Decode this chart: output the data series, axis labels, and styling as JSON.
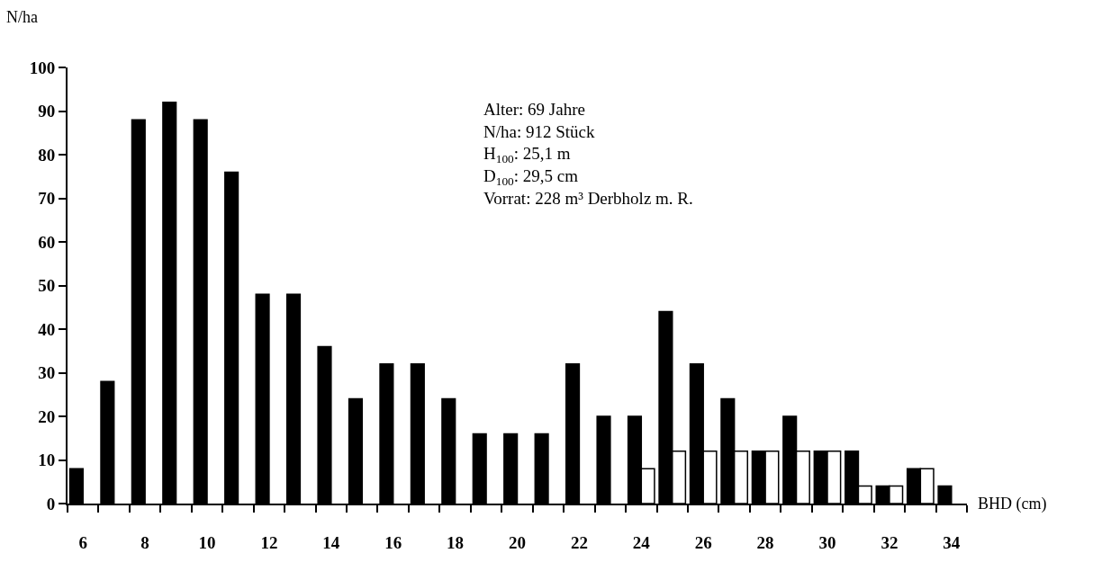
{
  "chart_data": {
    "type": "bar",
    "categories": [
      "6",
      null,
      "8",
      null,
      "10",
      null,
      "12",
      null,
      "14",
      null,
      "16",
      null,
      "18",
      null,
      "20",
      null,
      "22",
      null,
      "24",
      null,
      "26",
      null,
      "28",
      null,
      "30",
      null,
      "32",
      null,
      "34"
    ],
    "series": [
      {
        "color": "#000000",
        "values": [
          8,
          28,
          88,
          92,
          88,
          76,
          48,
          48,
          36,
          24,
          32,
          32,
          24,
          16,
          16,
          16,
          32,
          20,
          20,
          44,
          32,
          24,
          12,
          20,
          12,
          12,
          4,
          8,
          4
        ]
      },
      {
        "color": "#ffffff",
        "values": [
          null,
          null,
          null,
          null,
          null,
          null,
          null,
          null,
          null,
          null,
          null,
          null,
          null,
          null,
          null,
          null,
          null,
          null,
          8,
          12,
          12,
          12,
          12,
          12,
          12,
          4,
          4,
          8,
          null
        ]
      }
    ],
    "xlabel": "BHD (cm)",
    "ylabel": "N/ha",
    "ylim": [
      0,
      100
    ],
    "yticks": [
      0,
      10,
      20,
      30,
      40,
      50,
      60,
      70,
      80,
      90,
      100
    ],
    "annotations": [
      "Alter: 69 Jahre",
      "N/ha: 912 Stück",
      "H$_{100}$: 25,1 m",
      "D$_{100}$: 29,5 cm",
      "Vorrat: 228 m³ Derbholz m. R."
    ]
  }
}
